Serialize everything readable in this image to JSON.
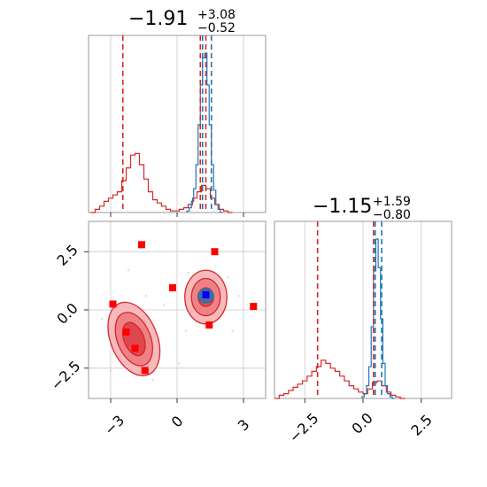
{
  "chart_data": [
    {
      "type": "histogram",
      "panel": "x-marginal",
      "title": {
        "main": "−1.91",
        "sup": "+3.08",
        "sub": "−0.52"
      },
      "xlim": [
        -4.0,
        4.0
      ],
      "grid": true,
      "series": [
        {
          "color": "#d62728",
          "bin_centers": [
            -3.8,
            -3.6,
            -3.4,
            -3.2,
            -3.0,
            -2.8,
            -2.6,
            -2.4,
            -2.2,
            -2.0,
            -1.8,
            -1.6,
            -1.4,
            -1.2,
            -1.0,
            -0.8,
            -0.6,
            -0.4,
            -0.2,
            0.0,
            0.2,
            0.4,
            0.6,
            0.8,
            1.0,
            1.2,
            1.4,
            1.6,
            1.8,
            2.0,
            2.2,
            2.4
          ],
          "heights": [
            0,
            0.02,
            0.04,
            0.07,
            0.09,
            0.11,
            0.13,
            0.2,
            0.28,
            0.36,
            0.37,
            0.3,
            0.21,
            0.13,
            0.08,
            0.06,
            0.04,
            0.02,
            0.01,
            0.01,
            0.02,
            0.03,
            0.05,
            0.09,
            0.13,
            0.17,
            0.15,
            0.09,
            0.05,
            0.02,
            0.01,
            0
          ]
        },
        {
          "color": "#1f77b4",
          "bin_centers": [
            0.5,
            0.6,
            0.7,
            0.8,
            0.9,
            1.0,
            1.1,
            1.2,
            1.3,
            1.4,
            1.5,
            1.6,
            1.7,
            1.8,
            1.9,
            2.0
          ],
          "heights": [
            0.01,
            0.03,
            0.07,
            0.15,
            0.3,
            0.55,
            0.8,
            0.97,
            1.0,
            0.8,
            0.55,
            0.3,
            0.14,
            0.05,
            0.02,
            0
          ]
        }
      ],
      "vlines": [
        {
          "x": -2.45,
          "color": "#d62728"
        },
        {
          "x": 1.05,
          "color": "#d62728"
        },
        {
          "x": 1.15,
          "color": "#1f77b4"
        },
        {
          "x": 1.3,
          "color": "#d62728"
        },
        {
          "x": 1.55,
          "color": "#1f77b4"
        }
      ]
    },
    {
      "type": "scatter",
      "panel": "joint",
      "xlim": [
        -4.0,
        4.0
      ],
      "ylim": [
        -3.8,
        3.8
      ],
      "xticks": [
        -3,
        0,
        3
      ],
      "yticks": [
        -2.5,
        0.0,
        2.5
      ],
      "xtick_labels": [
        "−3",
        "0",
        "3"
      ],
      "ytick_labels": [
        "−2.5",
        "0.0",
        "2.5"
      ],
      "grid": true,
      "contours": {
        "fill_colors": [
          "#f7b9bc",
          "#ee8186",
          "#e0464d"
        ],
        "line_color": "#d62728",
        "blobs": [
          {
            "cx": -1.95,
            "cy": -1.25,
            "rx": [
              1.05,
              0.75,
              0.45
            ],
            "ry": [
              1.65,
              1.2,
              0.75
            ],
            "angle": -22
          },
          {
            "cx": 1.3,
            "cy": 0.55,
            "rx": [
              0.95,
              0.65,
              0.35
            ],
            "ry": [
              1.15,
              0.8,
              0.4
            ],
            "angle": 0
          }
        ]
      },
      "blue_blob": {
        "cx": 1.3,
        "cy": 0.6,
        "rx": 0.35,
        "ry": 0.3,
        "color": "#1f77b4"
      },
      "points": [
        {
          "x": -1.6,
          "y": 2.8,
          "color": "#ff0000"
        },
        {
          "x": 1.7,
          "y": 2.5,
          "color": "#ff0000"
        },
        {
          "x": -0.2,
          "y": 0.95,
          "color": "#ff0000"
        },
        {
          "x": 3.45,
          "y": 0.15,
          "color": "#ff0000"
        },
        {
          "x": -2.9,
          "y": 0.25,
          "color": "#ff0000"
        },
        {
          "x": 1.45,
          "y": -0.65,
          "color": "#ff0000"
        },
        {
          "x": -2.3,
          "y": -0.95,
          "color": "#ff0000"
        },
        {
          "x": -1.9,
          "y": -1.65,
          "color": "#ff0000"
        },
        {
          "x": -1.45,
          "y": -2.6,
          "color": "#ff0000"
        },
        {
          "x": 1.3,
          "y": 0.65,
          "color": "#0000ff"
        }
      ],
      "scatter_dots": [
        {
          "x": -3.4,
          "y": -0.4
        },
        {
          "x": -2.2,
          "y": 1.7
        },
        {
          "x": -1.1,
          "y": -3.0
        },
        {
          "x": 0.4,
          "y": -0.9
        },
        {
          "x": 2.3,
          "y": 1.4
        },
        {
          "x": 2.5,
          "y": -0.9
        },
        {
          "x": -0.6,
          "y": 0.2
        },
        {
          "x": 0.1,
          "y": -2.3
        },
        {
          "x": 2.8,
          "y": 0.6
        },
        {
          "x": -3.0,
          "y": -2.6
        },
        {
          "x": 0.5,
          "y": 1.6
        },
        {
          "x": -1.4,
          "y": 0.6
        }
      ]
    },
    {
      "type": "histogram",
      "panel": "y-marginal",
      "title": {
        "main": "−1.15",
        "sup": "+1.59",
        "sub": "−0.80"
      },
      "xlim": [
        -3.8,
        3.8
      ],
      "xticks": [
        -2.5,
        0.0,
        2.5
      ],
      "xtick_labels": [
        "−2.5",
        "0.0",
        "2.5"
      ],
      "grid": true,
      "series": [
        {
          "color": "#d62728",
          "bin_centers": [
            -3.7,
            -3.5,
            -3.3,
            -3.1,
            -2.9,
            -2.7,
            -2.5,
            -2.3,
            -2.1,
            -1.9,
            -1.7,
            -1.5,
            -1.3,
            -1.1,
            -0.9,
            -0.7,
            -0.5,
            -0.3,
            -0.1,
            0.1,
            0.3,
            0.5,
            0.7,
            0.9,
            1.1,
            1.3,
            1.5,
            1.7
          ],
          "heights": [
            0,
            0.02,
            0.03,
            0.05,
            0.07,
            0.09,
            0.11,
            0.14,
            0.17,
            0.2,
            0.24,
            0.22,
            0.19,
            0.17,
            0.14,
            0.11,
            0.08,
            0.06,
            0.04,
            0.03,
            0.06,
            0.1,
            0.11,
            0.08,
            0.04,
            0.02,
            0.01,
            0
          ]
        },
        {
          "color": "#1f77b4",
          "bin_centers": [
            0.0,
            0.1,
            0.2,
            0.3,
            0.4,
            0.5,
            0.6,
            0.7,
            0.8,
            0.9,
            1.0,
            1.1,
            1.2,
            1.3
          ],
          "heights": [
            0.01,
            0.03,
            0.08,
            0.2,
            0.45,
            0.8,
            1.0,
            0.82,
            0.5,
            0.22,
            0.08,
            0.03,
            0.01,
            0
          ]
        }
      ],
      "vlines": [
        {
          "x": -1.95,
          "color": "#d62728"
        },
        {
          "x": 0.45,
          "color": "#d62728"
        },
        {
          "x": 0.52,
          "color": "#1f77b4"
        },
        {
          "x": 0.8,
          "color": "#1f77b4"
        }
      ]
    }
  ]
}
